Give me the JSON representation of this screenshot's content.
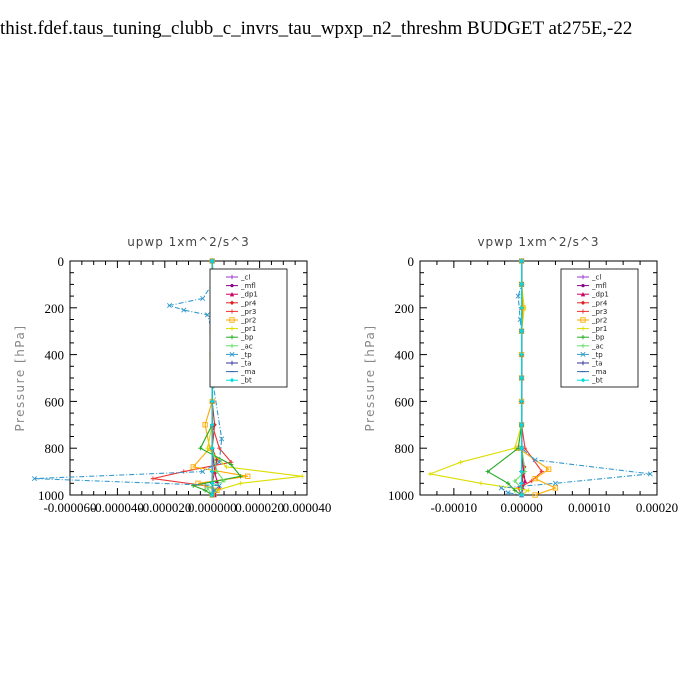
{
  "page_title": "thist.fdef.taus_tuning_clubb_c_invrs_tau_wpxp_n2_threshm  BUDGET at275E,-22",
  "chart_data": [
    {
      "type": "line",
      "title": "upwp   1xm^2/s^3",
      "ylabel": "Pressure [hPa]",
      "xlabel": "",
      "xlim": [
        -6e-05,
        4e-05
      ],
      "ylim": [
        1000,
        0
      ],
      "xticks": [
        -6e-05,
        -4e-05,
        -2e-05,
        0,
        2e-05,
        4e-05
      ],
      "xtick_labels": [
        "-0.000060",
        "-0.000040",
        "-0.000020",
        "0.000000",
        "0.000020",
        "0.000040"
      ],
      "yticks": [
        0,
        200,
        400,
        600,
        800,
        1000
      ],
      "ytick_labels": [
        "0",
        "200",
        "400",
        "600",
        "800",
        "1000"
      ],
      "legend_position": "top-right",
      "series": [
        {
          "name": "_cl",
          "color": "#9933cc",
          "marker": "+",
          "x": [
            0,
            0,
            0,
            0,
            0,
            0,
            0,
            0,
            0,
            0,
            0,
            0
          ],
          "y": [
            0,
            100,
            200,
            300,
            400,
            500,
            600,
            700,
            800,
            900,
            950,
            1000
          ]
        },
        {
          "name": "_mfl",
          "color": "#880088",
          "marker": "dot",
          "x": [
            0,
            0,
            0,
            0,
            0,
            0,
            0,
            0,
            0,
            0,
            0,
            0
          ],
          "y": [
            0,
            100,
            200,
            300,
            400,
            500,
            600,
            700,
            800,
            900,
            950,
            1000
          ]
        },
        {
          "name": "_dp1",
          "color": "#cc0066",
          "marker": "tri",
          "x": [
            0,
            0,
            0,
            0,
            0,
            0,
            0,
            0,
            0,
            1e-06,
            2e-06,
            3e-06,
            1e-06
          ],
          "y": [
            0,
            100,
            200,
            300,
            400,
            500,
            600,
            700,
            800,
            900,
            940,
            970,
            1000
          ]
        },
        {
          "name": "_pr4",
          "color": "#dd2222",
          "marker": "dia",
          "x": [
            0,
            0,
            0,
            0,
            0,
            0,
            0,
            1e-06,
            0,
            2e-06,
            1e-06,
            0,
            1e-06
          ],
          "y": [
            0,
            100,
            200,
            300,
            400,
            500,
            600,
            700,
            800,
            850,
            900,
            950,
            1000
          ]
        },
        {
          "name": "_pr3",
          "color": "#ee3333",
          "marker": "+",
          "x": [
            0,
            0,
            0,
            0,
            0,
            0,
            0,
            0,
            3e-06,
            8e-06,
            -1.2e-05,
            -2.5e-05,
            -3e-06,
            2e-06,
            0
          ],
          "y": [
            0,
            100,
            200,
            300,
            400,
            500,
            600,
            700,
            800,
            860,
            900,
            930,
            960,
            980,
            1000
          ]
        },
        {
          "name": "_pr2",
          "color": "#ffaa00",
          "marker": "sq",
          "x": [
            0,
            1e-06,
            3e-06,
            2e-06,
            0,
            0,
            0,
            -3e-06,
            -1e-06,
            -8e-06,
            1.5e-05,
            -6e-06,
            2e-06,
            0
          ],
          "y": [
            0,
            100,
            180,
            230,
            300,
            400,
            600,
            700,
            800,
            880,
            920,
            950,
            980,
            1000
          ]
        },
        {
          "name": "_pr1",
          "color": "#dddd00",
          "marker": "+",
          "x": [
            0,
            0,
            0,
            0,
            0,
            0,
            0,
            0,
            -2e-06,
            6e-06,
            3.8e-05,
            1.2e-05,
            2e-06,
            0
          ],
          "y": [
            0,
            100,
            200,
            300,
            400,
            500,
            600,
            700,
            800,
            880,
            920,
            950,
            980,
            1000
          ]
        },
        {
          "name": "_bp",
          "color": "#22aa22",
          "marker": "+",
          "x": [
            0,
            0,
            0,
            0,
            0,
            0,
            0,
            0,
            -5e-06,
            8e-06,
            1.2e-05,
            -8e-06,
            -3e-06,
            0
          ],
          "y": [
            0,
            100,
            200,
            300,
            400,
            500,
            600,
            700,
            800,
            870,
            920,
            960,
            980,
            1000
          ]
        },
        {
          "name": "_ac",
          "color": "#66dd66",
          "marker": "+",
          "x": [
            0,
            0,
            0,
            0,
            0,
            0,
            0,
            0,
            0,
            2e-06,
            5e-06,
            -2e-06,
            0
          ],
          "y": [
            0,
            100,
            200,
            300,
            400,
            500,
            600,
            700,
            800,
            900,
            940,
            970,
            1000
          ]
        },
        {
          "name": "_tp",
          "color": "#3399cc",
          "marker": "x",
          "x": [
            0,
            0,
            -4e-06,
            -1.8e-05,
            -1.2e-05,
            -2e-06,
            0,
            0,
            4e-06,
            3e-06,
            -4e-06,
            -7.5e-05,
            3e-06,
            1e-06,
            0
          ],
          "y": [
            0,
            100,
            160,
            190,
            210,
            230,
            300,
            500,
            760,
            860,
            900,
            930,
            960,
            980,
            1000
          ]
        },
        {
          "name": "_ta",
          "color": "#333399",
          "marker": "+",
          "x": [
            0,
            0,
            0,
            0,
            0,
            0,
            0,
            0,
            0,
            0,
            0,
            0
          ],
          "y": [
            0,
            100,
            200,
            300,
            400,
            500,
            600,
            700,
            800,
            900,
            950,
            1000
          ]
        },
        {
          "name": "_ma",
          "color": "#3366aa",
          "marker": "dash",
          "x": [
            0,
            0,
            0,
            0,
            0,
            0,
            0,
            0,
            0,
            0,
            0,
            0
          ],
          "y": [
            0,
            100,
            200,
            300,
            400,
            500,
            600,
            700,
            800,
            900,
            950,
            1000
          ]
        },
        {
          "name": "_bt",
          "color": "#00dddd",
          "marker": "dia",
          "x": [
            0,
            0,
            0,
            0,
            0,
            0,
            0,
            0,
            0,
            0,
            0,
            0
          ],
          "y": [
            0,
            100,
            200,
            300,
            400,
            500,
            600,
            700,
            800,
            900,
            950,
            1000
          ]
        }
      ]
    },
    {
      "type": "line",
      "title": "vpwp   1xm^2/s^3",
      "ylabel": "Pressure [hPa]",
      "xlabel": "",
      "xlim": [
        -0.00015,
        0.0002
      ],
      "ylim": [
        1000,
        0
      ],
      "xticks": [
        -0.0001,
        0,
        0.0001,
        0.0002
      ],
      "xtick_labels": [
        "-0.00010",
        "0.00000",
        "0.00010",
        "0.00020"
      ],
      "yticks": [
        0,
        200,
        400,
        600,
        800,
        1000
      ],
      "ytick_labels": [
        "0",
        "200",
        "400",
        "600",
        "800",
        "1000"
      ],
      "legend_position": "top-right",
      "series": [
        {
          "name": "_cl",
          "color": "#9933cc",
          "marker": "+",
          "x": [
            0,
            0,
            0,
            0,
            0,
            0,
            0,
            0,
            0,
            0,
            0,
            0
          ],
          "y": [
            0,
            100,
            200,
            300,
            400,
            500,
            600,
            700,
            800,
            900,
            950,
            1000
          ]
        },
        {
          "name": "_mfl",
          "color": "#880088",
          "marker": "dot",
          "x": [
            0,
            0,
            0,
            0,
            0,
            0,
            0,
            0,
            0,
            0,
            0,
            0
          ],
          "y": [
            0,
            100,
            200,
            300,
            400,
            500,
            600,
            700,
            800,
            900,
            950,
            1000
          ]
        },
        {
          "name": "_dp1",
          "color": "#cc0066",
          "marker": "tri",
          "x": [
            0,
            0,
            0,
            0,
            0,
            0,
            0,
            0,
            0,
            3e-06,
            5e-06,
            2e-06,
            0
          ],
          "y": [
            0,
            100,
            200,
            300,
            400,
            500,
            600,
            700,
            800,
            900,
            940,
            970,
            1000
          ]
        },
        {
          "name": "_pr4",
          "color": "#dd2222",
          "marker": "dia",
          "x": [
            0,
            0,
            0,
            0,
            0,
            0,
            0,
            0,
            0,
            4e-06,
            2e-06,
            1e-06,
            0
          ],
          "y": [
            0,
            100,
            200,
            300,
            400,
            500,
            600,
            700,
            800,
            880,
            920,
            960,
            1000
          ]
        },
        {
          "name": "_pr3",
          "color": "#ee3333",
          "marker": "+",
          "x": [
            0,
            0,
            0,
            0,
            0,
            0,
            0,
            0,
            5e-06,
            3e-05,
            1.5e-05,
            -5e-06,
            0
          ],
          "y": [
            0,
            100,
            200,
            300,
            400,
            500,
            600,
            700,
            800,
            900,
            940,
            970,
            1000
          ]
        },
        {
          "name": "_pr2",
          "color": "#ffaa00",
          "marker": "sq",
          "x": [
            0,
            0,
            2e-06,
            0,
            0,
            0,
            0,
            0,
            -5e-06,
            4e-05,
            2e-05,
            5e-05,
            2e-05
          ],
          "y": [
            0,
            100,
            200,
            300,
            400,
            500,
            600,
            700,
            800,
            890,
            930,
            970,
            1000
          ]
        },
        {
          "name": "_pr1",
          "color": "#dddd00",
          "marker": "+",
          "x": [
            0,
            0,
            4e-06,
            0,
            0,
            0,
            0,
            0,
            -1e-05,
            -9e-05,
            -0.000135,
            -6e-05,
            1e-05,
            0
          ],
          "y": [
            0,
            100,
            200,
            300,
            400,
            500,
            600,
            700,
            800,
            860,
            910,
            950,
            980,
            1000
          ]
        },
        {
          "name": "_bp",
          "color": "#22aa22",
          "marker": "+",
          "x": [
            0,
            0,
            0,
            0,
            0,
            0,
            0,
            0,
            -5e-06,
            -5e-05,
            -2e-05,
            -1e-05,
            0
          ],
          "y": [
            0,
            100,
            200,
            300,
            400,
            500,
            600,
            700,
            800,
            900,
            950,
            980,
            1000
          ]
        },
        {
          "name": "_ac",
          "color": "#66dd66",
          "marker": "+",
          "x": [
            0,
            0,
            0,
            0,
            0,
            0,
            0,
            0,
            0,
            5e-06,
            -1e-05,
            0,
            0
          ],
          "y": [
            0,
            100,
            200,
            300,
            400,
            500,
            600,
            700,
            800,
            900,
            940,
            970,
            1000
          ]
        },
        {
          "name": "_tp",
          "color": "#3399cc",
          "marker": "x",
          "x": [
            0,
            0,
            -5e-06,
            -2e-06,
            0,
            0,
            0,
            0,
            2e-05,
            0.00019,
            5e-05,
            -3e-05,
            -2e-05,
            0
          ],
          "y": [
            0,
            100,
            150,
            250,
            300,
            500,
            700,
            800,
            850,
            910,
            950,
            970,
            990,
            1000
          ]
        },
        {
          "name": "_ta",
          "color": "#333399",
          "marker": "+",
          "x": [
            0,
            0,
            0,
            0,
            0,
            0,
            0,
            0,
            0,
            0,
            0,
            0
          ],
          "y": [
            0,
            100,
            200,
            300,
            400,
            500,
            600,
            700,
            800,
            900,
            950,
            1000
          ]
        },
        {
          "name": "_ma",
          "color": "#3366aa",
          "marker": "dash",
          "x": [
            0,
            0,
            0,
            0,
            0,
            0,
            0,
            0,
            0,
            0,
            0,
            0
          ],
          "y": [
            0,
            100,
            200,
            300,
            400,
            500,
            600,
            700,
            800,
            900,
            950,
            1000
          ]
        },
        {
          "name": "_bt",
          "color": "#00dddd",
          "marker": "dia",
          "x": [
            0,
            0,
            0,
            0,
            0,
            0,
            0,
            0,
            0,
            0,
            0,
            0
          ],
          "y": [
            0,
            100,
            200,
            300,
            400,
            500,
            600,
            700,
            800,
            900,
            950,
            1000
          ]
        }
      ]
    }
  ]
}
